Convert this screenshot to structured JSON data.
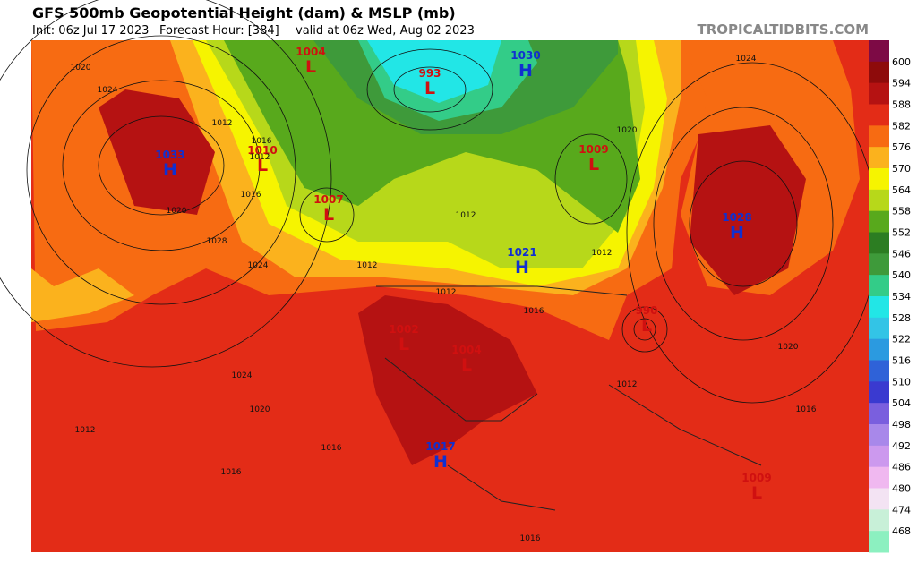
{
  "header": {
    "title": "GFS 500mb Geopotential Height (dam) & MSLP (mb)",
    "init": "Init: 06z Jul 17 2023",
    "forecast_hour": "Forecast Hour: [384]",
    "valid": "valid at 06z Wed, Aug 02 2023",
    "site": "TROPICALTIDBITS.COM"
  },
  "colorbar": {
    "levels": [
      600,
      594,
      588,
      582,
      576,
      570,
      564,
      558,
      552,
      546,
      540,
      534,
      528,
      522,
      516,
      510,
      504,
      498,
      492,
      486,
      480,
      474,
      468
    ],
    "colors": [
      "#7d0a45",
      "#8e0b0b",
      "#b51212",
      "#e32c17",
      "#f76b12",
      "#fbb21d",
      "#f6f400",
      "#b7d81a",
      "#58a91c",
      "#2c7d22",
      "#3e9a3a",
      "#33cc88",
      "#22e6e6",
      "#33c4e6",
      "#2b9ae0",
      "#2f62d8",
      "#3a3ad0",
      "#7a5fde",
      "#a888ea",
      "#cc99ee",
      "#f0b8f0",
      "#f3e3f3",
      "#c8f0d8",
      "#8cf0c0"
    ]
  },
  "centers": [
    {
      "letter": "L",
      "value": 1004
    },
    {
      "letter": "L",
      "value": 993
    },
    {
      "letter": "H",
      "value": 1030
    },
    {
      "letter": "H",
      "value": 1033
    },
    {
      "letter": "L",
      "value": 1010
    },
    {
      "letter": "L",
      "value": 1007
    },
    {
      "letter": "L",
      "value": 1009
    },
    {
      "letter": "H",
      "value": 1028
    },
    {
      "letter": "H",
      "value": 1021
    },
    {
      "letter": "L",
      "value": 990
    },
    {
      "letter": "L",
      "value": 1002
    },
    {
      "letter": "L",
      "value": 1004
    },
    {
      "letter": "H",
      "value": 1017
    },
    {
      "letter": "L",
      "value": 1009
    }
  ],
  "isobar_labels": [
    1020,
    1024,
    1028,
    1024,
    1020,
    1016,
    1012,
    1016,
    1024,
    1020,
    1012,
    1016,
    1016,
    1012,
    1012,
    1016,
    1012,
    1016,
    1012,
    1020,
    1012,
    1024,
    1020,
    1016,
    1012
  ]
}
